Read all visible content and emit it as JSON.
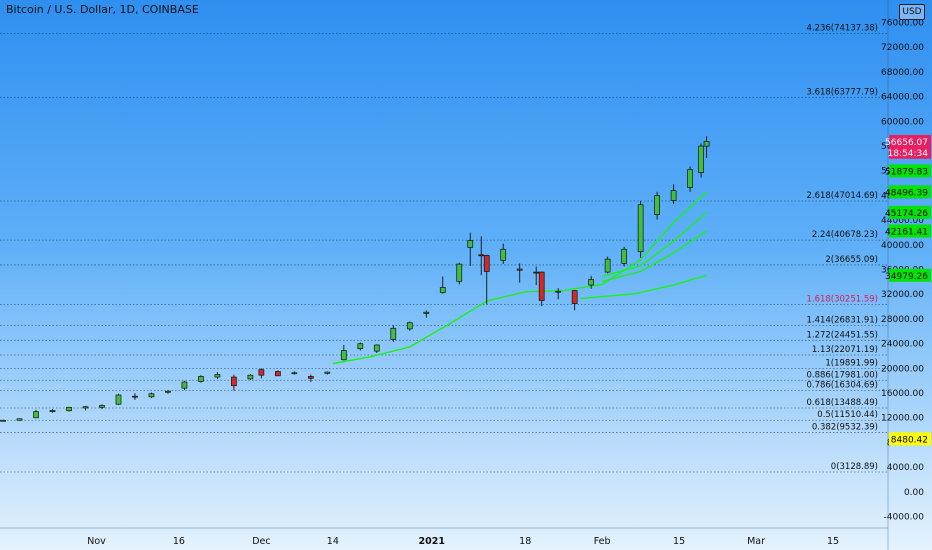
{
  "header": {
    "title": "Bitcoin / U.S. Dollar, 1D, COINBASE",
    "currency": "USD"
  },
  "chart_data": {
    "type": "candlestick",
    "title": "Bitcoin / U.S. Dollar, 1D, COINBASE",
    "ylim": [
      -5000,
      77000
    ],
    "y_ticks": [
      "76000.00",
      "72000.00",
      "68000.00",
      "64000.00",
      "60000.00",
      "56000.00",
      "52000.00",
      "48000.00",
      "44000.00",
      "40000.00",
      "36000.00",
      "32000.00",
      "28000.00",
      "24000.00",
      "20000.00",
      "16000.00",
      "12000.00",
      "8000.00",
      "4000.00",
      "0.00",
      "-4000.00"
    ],
    "x_ticks": [
      "Nov",
      "16",
      "Dec",
      "14",
      "2021",
      "18",
      "Feb",
      "15",
      "Mar",
      "15"
    ],
    "fib_levels": [
      {
        "label": "4.236(74137.38)",
        "value": 74137.38
      },
      {
        "label": "3.618(63777.79)",
        "value": 63777.79
      },
      {
        "label": "2.618(47014.69)",
        "value": 47014.69
      },
      {
        "label": "2.24(40678.23)",
        "value": 40678.23
      },
      {
        "label": "2(36655.09)",
        "value": 36655.09
      },
      {
        "label": "1.618(30251.59)",
        "value": 30251.59,
        "color": "#d81b60"
      },
      {
        "label": "1.414(26831.91)",
        "value": 26831.91
      },
      {
        "label": "1.272(24451.55)",
        "value": 24451.55
      },
      {
        "label": "1.13(22071.19)",
        "value": 22071.19
      },
      {
        "label": "1(19891.99)",
        "value": 19891.99
      },
      {
        "label": "0.886(17981.00)",
        "value": 17981.0
      },
      {
        "label": "0.786(16304.69)",
        "value": 16304.69
      },
      {
        "label": "0.618(13488.49)",
        "value": 13488.49
      },
      {
        "label": "0.5(11510.44)",
        "value": 11510.44
      },
      {
        "label": "0.382(9532.39)",
        "value": 9532.39
      },
      {
        "label": "0(3128.89)",
        "value": 3128.89
      }
    ],
    "price_markers": [
      {
        "text": "56656.07",
        "value": 56656.07,
        "color": "#e91e63",
        "text_color": "#ffffff"
      },
      {
        "text": "18:54:34",
        "value": 54900,
        "color": "#e91e63",
        "text_color": "#ffffff"
      },
      {
        "text": "51879.83",
        "value": 51879.83,
        "color": "#00e600",
        "text_color": "#000000"
      },
      {
        "text": "48496.39",
        "value": 48496.39,
        "color": "#00e600",
        "text_color": "#000000"
      },
      {
        "text": "45174.26",
        "value": 45174.26,
        "color": "#00e600",
        "text_color": "#000000"
      },
      {
        "text": "42161.41",
        "value": 42161.41,
        "color": "#00e600",
        "text_color": "#000000"
      },
      {
        "text": "34979.26",
        "value": 34979.26,
        "color": "#00e600",
        "text_color": "#000000"
      },
      {
        "text": "8480.42",
        "value": 8480.42,
        "color": "#ffff00",
        "text_color": "#000000"
      }
    ],
    "candles": [
      {
        "date": "2020-10-12",
        "o": 11500,
        "h": 11650,
        "l": 11400,
        "c": 11550
      },
      {
        "date": "2020-10-15",
        "o": 11450,
        "h": 11600,
        "l": 11300,
        "c": 11500
      },
      {
        "date": "2020-10-18",
        "o": 11500,
        "h": 11800,
        "l": 11450,
        "c": 11750
      },
      {
        "date": "2020-10-21",
        "o": 11900,
        "h": 13200,
        "l": 11850,
        "c": 12900
      },
      {
        "date": "2020-10-24",
        "o": 12900,
        "h": 13300,
        "l": 12700,
        "c": 13100
      },
      {
        "date": "2020-10-27",
        "o": 13050,
        "h": 13700,
        "l": 12900,
        "c": 13600
      },
      {
        "date": "2020-10-30",
        "o": 13500,
        "h": 13800,
        "l": 13100,
        "c": 13700
      },
      {
        "date": "2020-11-02",
        "o": 13600,
        "h": 14100,
        "l": 13300,
        "c": 13900
      },
      {
        "date": "2020-11-05",
        "o": 14100,
        "h": 15800,
        "l": 14000,
        "c": 15600
      },
      {
        "date": "2020-11-08",
        "o": 15400,
        "h": 15900,
        "l": 14800,
        "c": 15300
      },
      {
        "date": "2020-11-11",
        "o": 15300,
        "h": 16000,
        "l": 15100,
        "c": 15800
      },
      {
        "date": "2020-11-14",
        "o": 16100,
        "h": 16400,
        "l": 15800,
        "c": 16200
      },
      {
        "date": "2020-11-17",
        "o": 16700,
        "h": 17900,
        "l": 16400,
        "c": 17700
      },
      {
        "date": "2020-11-20",
        "o": 17800,
        "h": 18800,
        "l": 17600,
        "c": 18600
      },
      {
        "date": "2020-11-23",
        "o": 18500,
        "h": 19300,
        "l": 18200,
        "c": 18900
      },
      {
        "date": "2020-11-26",
        "o": 18500,
        "h": 18900,
        "l": 16300,
        "c": 17100
      },
      {
        "date": "2020-11-29",
        "o": 18200,
        "h": 19000,
        "l": 18000,
        "c": 18800
      },
      {
        "date": "2020-12-01",
        "o": 19700,
        "h": 19900,
        "l": 18300,
        "c": 18800
      },
      {
        "date": "2020-12-04",
        "o": 19400,
        "h": 19600,
        "l": 18700,
        "c": 18700
      },
      {
        "date": "2020-12-07",
        "o": 19200,
        "h": 19400,
        "l": 18900,
        "c": 19200
      },
      {
        "date": "2020-12-10",
        "o": 18600,
        "h": 18900,
        "l": 17700,
        "c": 18300
      },
      {
        "date": "2020-12-13",
        "o": 19100,
        "h": 19400,
        "l": 18900,
        "c": 19300
      },
      {
        "date": "2020-12-16",
        "o": 21300,
        "h": 23700,
        "l": 21200,
        "c": 22800
      },
      {
        "date": "2020-12-19",
        "o": 23100,
        "h": 24100,
        "l": 22800,
        "c": 23900
      },
      {
        "date": "2020-12-22",
        "o": 22700,
        "h": 23800,
        "l": 22400,
        "c": 23700
      },
      {
        "date": "2020-12-25",
        "o": 24600,
        "h": 26900,
        "l": 24200,
        "c": 26400
      },
      {
        "date": "2020-12-28",
        "o": 26300,
        "h": 27500,
        "l": 26000,
        "c": 27300
      },
      {
        "date": "2020-12-31",
        "o": 28800,
        "h": 29300,
        "l": 28100,
        "c": 29000
      },
      {
        "date": "2021-01-03",
        "o": 32200,
        "h": 34800,
        "l": 32000,
        "c": 33000
      },
      {
        "date": "2021-01-06",
        "o": 34000,
        "h": 37000,
        "l": 33500,
        "c": 36800
      },
      {
        "date": "2021-01-08",
        "o": 39500,
        "h": 41900,
        "l": 36500,
        "c": 40600
      },
      {
        "date": "2021-01-10",
        "o": 38300,
        "h": 41300,
        "l": 35000,
        "c": 38200
      },
      {
        "date": "2021-01-11",
        "o": 38200,
        "h": 38300,
        "l": 30300,
        "c": 35600
      },
      {
        "date": "2021-01-14",
        "o": 37400,
        "h": 40100,
        "l": 36800,
        "c": 39200
      },
      {
        "date": "2021-01-17",
        "o": 36000,
        "h": 36900,
        "l": 33800,
        "c": 35800
      },
      {
        "date": "2021-01-20",
        "o": 35500,
        "h": 36400,
        "l": 33400,
        "c": 35400
      },
      {
        "date": "2021-01-21",
        "o": 35500,
        "h": 35600,
        "l": 30000,
        "c": 30900
      },
      {
        "date": "2021-01-24",
        "o": 32300,
        "h": 32900,
        "l": 31100,
        "c": 32400
      },
      {
        "date": "2021-01-27",
        "o": 32500,
        "h": 32600,
        "l": 29300,
        "c": 30400
      },
      {
        "date": "2021-01-30",
        "o": 33400,
        "h": 34900,
        "l": 32800,
        "c": 34300
      },
      {
        "date": "2021-02-02",
        "o": 35500,
        "h": 38000,
        "l": 35300,
        "c": 37600
      },
      {
        "date": "2021-02-05",
        "o": 36900,
        "h": 39600,
        "l": 36400,
        "c": 39200
      },
      {
        "date": "2021-02-08",
        "o": 38800,
        "h": 47000,
        "l": 37800,
        "c": 46400
      },
      {
        "date": "2021-02-11",
        "o": 44800,
        "h": 48500,
        "l": 44000,
        "c": 47900
      },
      {
        "date": "2021-02-14",
        "o": 47100,
        "h": 49700,
        "l": 46500,
        "c": 48700
      },
      {
        "date": "2021-02-17",
        "o": 49200,
        "h": 52600,
        "l": 48500,
        "c": 52100
      },
      {
        "date": "2021-02-19",
        "o": 51600,
        "h": 56300,
        "l": 50800,
        "c": 55900
      },
      {
        "date": "2021-02-20",
        "o": 55900,
        "h": 57500,
        "l": 54000,
        "c": 56656
      }
    ],
    "ma_fast": [
      [
        "2020-12-14",
        20700
      ],
      [
        "2020-12-21",
        21800
      ],
      [
        "2020-12-28",
        23400
      ],
      [
        "2021-01-04",
        27000
      ],
      [
        "2021-01-11",
        30800
      ],
      [
        "2021-01-18",
        32300
      ],
      [
        "2021-01-25",
        32500
      ],
      [
        "2021-02-01",
        33500
      ],
      [
        "2021-02-08",
        37500
      ],
      [
        "2021-02-14",
        43500
      ],
      [
        "2021-02-20",
        48500
      ]
    ],
    "ma_mid": [
      [
        "2021-02-01",
        34800
      ],
      [
        "2021-02-08",
        36500
      ],
      [
        "2021-02-14",
        40500
      ],
      [
        "2021-02-20",
        45174
      ]
    ],
    "ma_slow": [
      [
        "2021-02-01",
        34000
      ],
      [
        "2021-02-08",
        35600
      ],
      [
        "2021-02-14",
        38600
      ],
      [
        "2021-02-20",
        42161
      ]
    ],
    "ma_long": [
      [
        "2021-01-28",
        31200
      ],
      [
        "2021-02-07",
        32000
      ],
      [
        "2021-02-14",
        33400
      ],
      [
        "2021-02-20",
        34979
      ]
    ]
  }
}
